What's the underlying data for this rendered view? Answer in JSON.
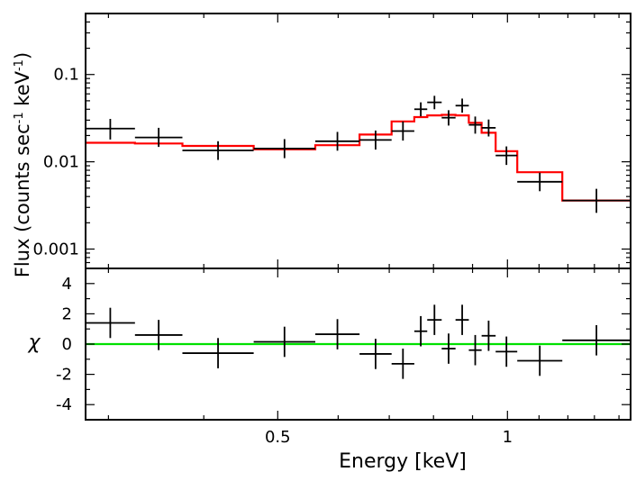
{
  "colors": {
    "data": "#000000",
    "model": "#ff0000",
    "zero_line": "#00e000",
    "frame": "#000000"
  },
  "chart_data": [
    {
      "type": "step-with-errorbars",
      "panel": "spectrum",
      "ylabel_pre": "Flux (counts sec",
      "ylabel_sup1": "-1",
      "ylabel_mid": " keV",
      "ylabel_sup2": "-1",
      "ylabel_post": ")",
      "yscale": "log",
      "ylim": [
        0.0006,
        0.5
      ],
      "xscale": "log",
      "xlim": [
        0.28,
        1.45
      ],
      "yticks": [
        {
          "v": 0.1,
          "label": "0.1"
        },
        {
          "v": 0.01,
          "label": "0.01"
        },
        {
          "v": 0.001,
          "label": "0.001"
        }
      ],
      "data_points": [
        {
          "x_lo": 0.28,
          "x_hi": 0.325,
          "y": 0.024,
          "y_lo": 0.018,
          "y_hi": 0.031
        },
        {
          "x_lo": 0.325,
          "x_hi": 0.375,
          "y": 0.019,
          "y_lo": 0.0148,
          "y_hi": 0.0245
        },
        {
          "x_lo": 0.375,
          "x_hi": 0.465,
          "y": 0.0135,
          "y_lo": 0.0105,
          "y_hi": 0.0172
        },
        {
          "x_lo": 0.465,
          "x_hi": 0.56,
          "y": 0.0142,
          "y_lo": 0.011,
          "y_hi": 0.0182
        },
        {
          "x_lo": 0.56,
          "x_hi": 0.64,
          "y": 0.0172,
          "y_lo": 0.0134,
          "y_hi": 0.022
        },
        {
          "x_lo": 0.64,
          "x_hi": 0.705,
          "y": 0.0178,
          "y_lo": 0.0138,
          "y_hi": 0.0228
        },
        {
          "x_lo": 0.705,
          "x_hi": 0.755,
          "y": 0.0225,
          "y_lo": 0.0175,
          "y_hi": 0.029
        },
        {
          "x_lo": 0.755,
          "x_hi": 0.785,
          "y": 0.04,
          "y_lo": 0.0332,
          "y_hi": 0.048
        },
        {
          "x_lo": 0.785,
          "x_hi": 0.82,
          "y": 0.048,
          "y_lo": 0.04,
          "y_hi": 0.057
        },
        {
          "x_lo": 0.82,
          "x_hi": 0.855,
          "y": 0.032,
          "y_lo": 0.026,
          "y_hi": 0.039
        },
        {
          "x_lo": 0.855,
          "x_hi": 0.89,
          "y": 0.044,
          "y_lo": 0.0365,
          "y_hi": 0.053
        },
        {
          "x_lo": 0.89,
          "x_hi": 0.925,
          "y": 0.0265,
          "y_lo": 0.021,
          "y_hi": 0.033
        },
        {
          "x_lo": 0.925,
          "x_hi": 0.965,
          "y": 0.0245,
          "y_lo": 0.0195,
          "y_hi": 0.0305
        },
        {
          "x_lo": 0.965,
          "x_hi": 1.03,
          "y": 0.0118,
          "y_lo": 0.0092,
          "y_hi": 0.015
        },
        {
          "x_lo": 1.03,
          "x_hi": 1.18,
          "y": 0.0059,
          "y_lo": 0.0046,
          "y_hi": 0.0075
        },
        {
          "x_lo": 1.18,
          "x_hi": 1.45,
          "y": 0.0036,
          "y_lo": 0.0026,
          "y_hi": 0.0049
        }
      ],
      "model_steps": [
        {
          "x_lo": 0.28,
          "x_hi": 0.325,
          "y": 0.0165
        },
        {
          "x_lo": 0.325,
          "x_hi": 0.375,
          "y": 0.0162
        },
        {
          "x_lo": 0.375,
          "x_hi": 0.465,
          "y": 0.0152
        },
        {
          "x_lo": 0.465,
          "x_hi": 0.56,
          "y": 0.0139
        },
        {
          "x_lo": 0.56,
          "x_hi": 0.64,
          "y": 0.0155
        },
        {
          "x_lo": 0.64,
          "x_hi": 0.705,
          "y": 0.0205
        },
        {
          "x_lo": 0.705,
          "x_hi": 0.755,
          "y": 0.029
        },
        {
          "x_lo": 0.755,
          "x_hi": 0.785,
          "y": 0.0325
        },
        {
          "x_lo": 0.785,
          "x_hi": 0.82,
          "y": 0.034
        },
        {
          "x_lo": 0.82,
          "x_hi": 0.855,
          "y": 0.0345
        },
        {
          "x_lo": 0.855,
          "x_hi": 0.89,
          "y": 0.034
        },
        {
          "x_lo": 0.89,
          "x_hi": 0.925,
          "y": 0.028
        },
        {
          "x_lo": 0.925,
          "x_hi": 0.965,
          "y": 0.0215
        },
        {
          "x_lo": 0.965,
          "x_hi": 1.03,
          "y": 0.0132
        },
        {
          "x_lo": 1.03,
          "x_hi": 1.18,
          "y": 0.0076
        },
        {
          "x_lo": 1.18,
          "x_hi": 1.45,
          "y": 0.0036
        }
      ]
    },
    {
      "type": "residuals-with-errorbars",
      "panel": "residuals",
      "ylabel": "χ",
      "ylim": [
        -5,
        5
      ],
      "yticks": [
        {
          "v": 4,
          "label": "4"
        },
        {
          "v": 2,
          "label": "2"
        },
        {
          "v": 0,
          "label": "0"
        },
        {
          "v": -2,
          "label": "-2"
        },
        {
          "v": -4,
          "label": "-4"
        }
      ],
      "zero_line": 0,
      "xlabel": "Energy [keV]",
      "xticks": [
        {
          "v": 0.5,
          "label": "0.5"
        },
        {
          "v": 1,
          "label": "1"
        }
      ],
      "residuals": [
        1.4,
        0.6,
        -0.6,
        0.15,
        0.65,
        -0.65,
        -1.3,
        0.85,
        1.6,
        -0.3,
        1.6,
        -0.4,
        0.55,
        -0.5,
        -1.1,
        0.25
      ]
    }
  ]
}
